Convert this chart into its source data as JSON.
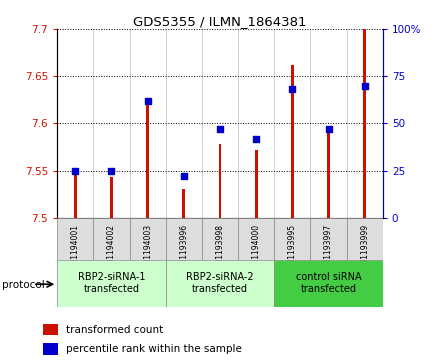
{
  "title": "GDS5355 / ILMN_1864381",
  "samples": [
    "GSM1194001",
    "GSM1194002",
    "GSM1194003",
    "GSM1193996",
    "GSM1193998",
    "GSM1194000",
    "GSM1193995",
    "GSM1193997",
    "GSM1193999"
  ],
  "transformed_count": [
    7.548,
    7.543,
    7.622,
    7.53,
    7.578,
    7.572,
    7.662,
    7.595,
    7.7
  ],
  "percentile_rank": [
    25,
    25,
    62,
    22,
    47,
    42,
    68,
    47,
    70
  ],
  "ylim_left": [
    7.5,
    7.7
  ],
  "ylim_right": [
    0,
    100
  ],
  "yticks_left": [
    7.5,
    7.55,
    7.6,
    7.65,
    7.7
  ],
  "yticks_right": [
    0,
    25,
    50,
    75,
    100
  ],
  "bar_color": "#cc1100",
  "dot_color": "#0000cc",
  "groups": [
    {
      "label": "RBP2-siRNA-1\ntransfected",
      "indices": [
        0,
        1,
        2
      ],
      "color": "#ccffcc"
    },
    {
      "label": "RBP2-siRNA-2\ntransfected",
      "indices": [
        3,
        4,
        5
      ],
      "color": "#ccffcc"
    },
    {
      "label": "control siRNA\ntransfected",
      "indices": [
        6,
        7,
        8
      ],
      "color": "#44cc44"
    }
  ],
  "protocol_label": "protocol",
  "legend_items": [
    {
      "label": "transformed count",
      "color": "#cc1100"
    },
    {
      "label": "percentile rank within the sample",
      "color": "#0000cc"
    }
  ],
  "bar_bottom": 7.5,
  "dot_size": 22,
  "bar_width": 0.08
}
